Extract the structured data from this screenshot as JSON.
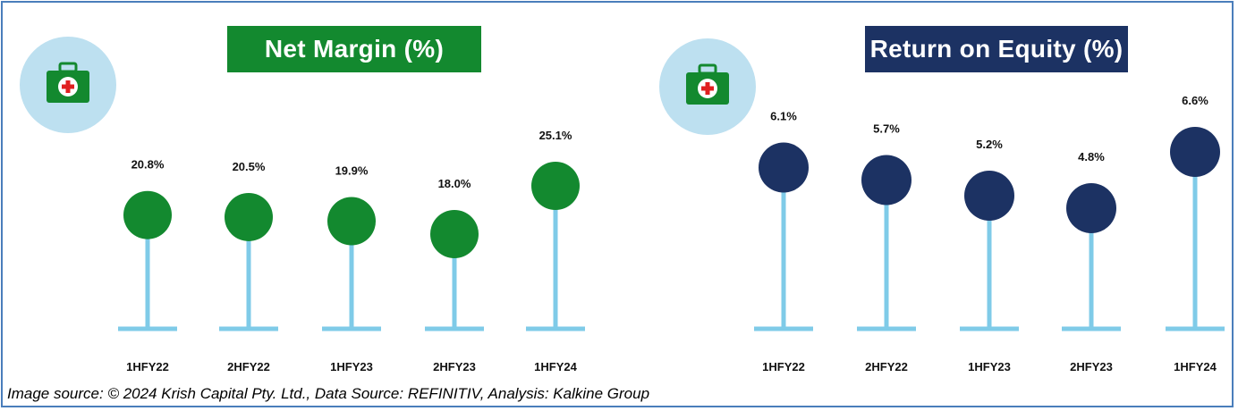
{
  "chart_data": [
    {
      "type": "lollipop",
      "title": "Net Margin (%)",
      "categories": [
        "1HFY22",
        "2HFY22",
        "1HFY23",
        "2HFY23",
        "1HFY24"
      ],
      "values": [
        20.8,
        20.5,
        19.9,
        18.0,
        25.1
      ],
      "labels": [
        "20.8%",
        "20.5%",
        "19.9%",
        "18.0%",
        "25.1%"
      ],
      "color": "#13892f",
      "stem_color": "#7fcbe8",
      "ylim": [
        0,
        25.1
      ]
    },
    {
      "type": "lollipop",
      "title": "Return on Equity (%)",
      "categories": [
        "1HFY22",
        "2HFY22",
        "1HFY23",
        "2HFY23",
        "1HFY24"
      ],
      "values": [
        6.1,
        5.7,
        5.2,
        4.8,
        6.6
      ],
      "labels": [
        "6.1%",
        "5.7%",
        "5.2%",
        "4.8%",
        "6.6%"
      ],
      "color": "#1c3263",
      "stem_color": "#7fcbe8",
      "ylim": [
        0,
        6.6
      ]
    }
  ],
  "icons": [
    "medical-kit-icon",
    "medical-kit-icon"
  ],
  "footer": "Image source: © 2024 Krish Capital Pty. Ltd., Data Source: REFINITIV, Analysis: Kalkine Group"
}
